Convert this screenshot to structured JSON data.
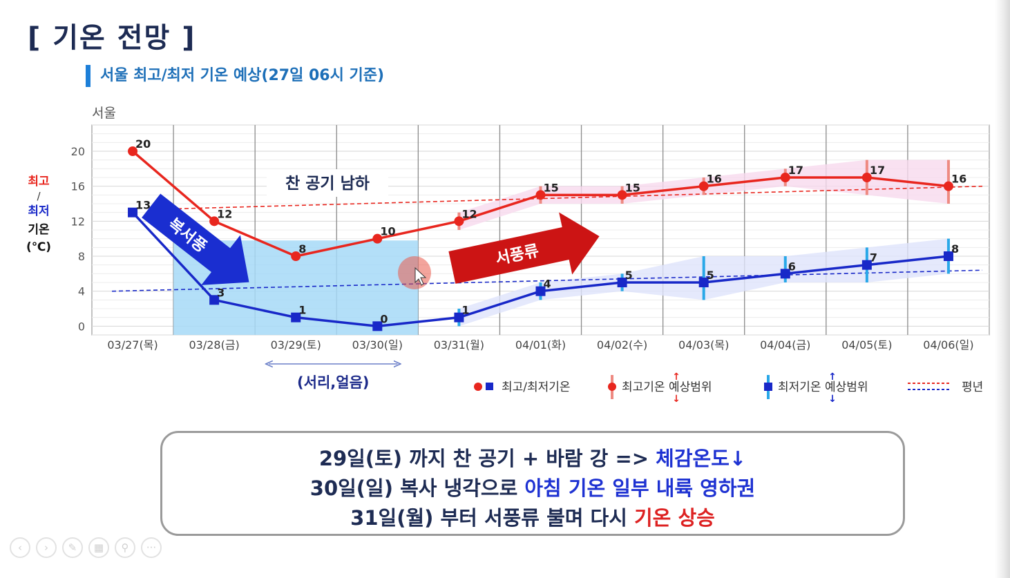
{
  "slide": {
    "title": "[ 기온 전망 ]",
    "subtitle": "서울 최고/최저 기온 예상(27일 06시 기준)"
  },
  "colors": {
    "title": "#1d2b53",
    "subtitle_bar": "#1d7fd8",
    "max_series": "#e8261e",
    "min_series": "#1828c8",
    "max_band": "#f7d9ee",
    "min_band": "#dfe3fb",
    "cold_region": "#a6d9f7",
    "arrow_blue": "#1a2ed0",
    "arrow_red": "#cc1414",
    "highlight_blue": "#1e32d2",
    "highlight_red": "#dd2222"
  },
  "chart_data": {
    "type": "line",
    "region_label": "서울",
    "categories": [
      "03/27(목)",
      "03/28(금)",
      "03/29(토)",
      "03/30(일)",
      "03/31(월)",
      "04/01(화)",
      "04/02(수)",
      "04/03(목)",
      "04/04(금)",
      "04/05(토)",
      "04/06(일)"
    ],
    "ylim": [
      -1,
      23
    ],
    "yticks": [
      0,
      4,
      8,
      12,
      16,
      20
    ],
    "grid": true,
    "ylabel": {
      "max": "최고",
      "slash": "/",
      "min": "최저",
      "temp": "기온",
      "unit": "(℃)"
    },
    "series": [
      {
        "name": "최고기온",
        "color": "#e8261e",
        "marker": "circle",
        "values": [
          20,
          12,
          8,
          10,
          12,
          15,
          15,
          16,
          17,
          17,
          16
        ],
        "range": [
          null,
          null,
          null,
          null,
          [
            11,
            13
          ],
          [
            14,
            16
          ],
          [
            14,
            16
          ],
          [
            15,
            17
          ],
          [
            16,
            18
          ],
          [
            15,
            19
          ],
          [
            14,
            19
          ]
        ]
      },
      {
        "name": "최저기온",
        "color": "#1828c8",
        "marker": "square",
        "values": [
          13,
          3,
          1,
          0,
          1,
          4,
          5,
          5,
          6,
          7,
          8
        ],
        "range": [
          null,
          null,
          null,
          null,
          [
            0,
            2
          ],
          [
            3,
            5
          ],
          [
            4,
            6
          ],
          [
            3,
            8
          ],
          [
            5,
            8
          ],
          [
            5,
            9
          ],
          [
            6,
            10
          ]
        ]
      }
    ],
    "normal_max": [
      13.4,
      16
    ],
    "normal_min": [
      4,
      6.4
    ],
    "cold_region_categories": [
      "03/28(금)",
      "03/30(일)"
    ],
    "cold_region_top": 9.8,
    "annotations": {
      "cold_air": "찬 공기 남하",
      "northwest_wind": "복서풍",
      "west_wind": "서풍류",
      "frost": "(서리,얼음)"
    },
    "legend": {
      "position": "bottom-right",
      "items": [
        "최고/최저기온",
        "최고기온 예상범위",
        "최저기온 예상범위",
        "평년"
      ]
    }
  },
  "summary": {
    "line1_a": "29일(토) 까지 찬 공기 + 바람 강 => ",
    "line1_b": "체감온도↓",
    "line2_a": "30일(일) 복사 냉각으로 ",
    "line2_b": "아침 기온 일부 내륙 영하권",
    "line3_a": "31일(월) 부터 서풍류 불며 다시 ",
    "line3_b": "기온 상승"
  },
  "controls": [
    {
      "name": "prev-slide",
      "icon": "‹"
    },
    {
      "name": "next-slide",
      "icon": "›"
    },
    {
      "name": "pen",
      "icon": "✎"
    },
    {
      "name": "slides",
      "icon": "▦"
    },
    {
      "name": "zoom",
      "icon": "⚲"
    },
    {
      "name": "more",
      "icon": "···"
    }
  ]
}
